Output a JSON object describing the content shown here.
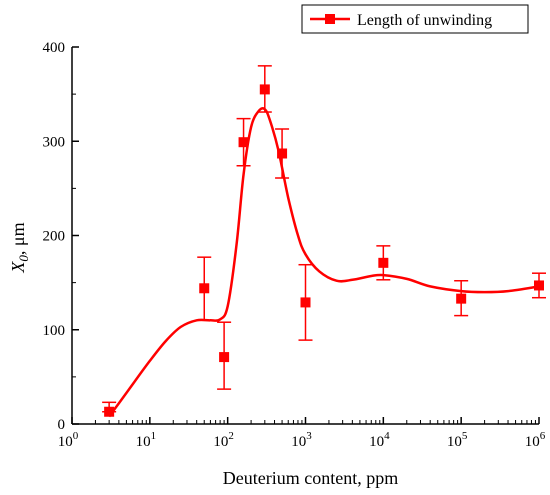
{
  "chart_data": {
    "type": "scatter",
    "x_scale": "log",
    "xlabel": "Deuterium content, ppm",
    "ylabel_main": "X",
    "ylabel_sub": "0",
    "ylabel_unit": ", μm",
    "xlim": [
      1,
      1000000
    ],
    "ylim": [
      0,
      400
    ],
    "x_ticks": [
      {
        "base": "10",
        "exp": "0",
        "value": 1
      },
      {
        "base": "10",
        "exp": "1",
        "value": 10
      },
      {
        "base": "10",
        "exp": "2",
        "value": 100
      },
      {
        "base": "10",
        "exp": "3",
        "value": 1000
      },
      {
        "base": "10",
        "exp": "4",
        "value": 10000
      },
      {
        "base": "10",
        "exp": "5",
        "value": 100000
      },
      {
        "base": "10",
        "exp": "6",
        "value": 1000000
      }
    ],
    "y_ticks": [
      {
        "label": "0",
        "value": 0
      },
      {
        "label": "100",
        "value": 100
      },
      {
        "label": "200",
        "value": 200
      },
      {
        "label": "300",
        "value": 300
      },
      {
        "label": "400",
        "value": 400
      }
    ],
    "grid": false,
    "legend_position": "top-right",
    "series": [
      {
        "name": "Length of unwinding",
        "color": "#ff0000",
        "marker": "square",
        "points": [
          {
            "x": 3,
            "y": 13,
            "err_low": 13,
            "err_high": 23
          },
          {
            "x": 50,
            "y": 144,
            "err_low": 110,
            "err_high": 177
          },
          {
            "x": 90,
            "y": 71,
            "err_low": 37,
            "err_high": 108
          },
          {
            "x": 160,
            "y": 299,
            "err_low": 274,
            "err_high": 324
          },
          {
            "x": 300,
            "y": 355,
            "err_low": 331,
            "err_high": 380
          },
          {
            "x": 500,
            "y": 287,
            "err_low": 261,
            "err_high": 313
          },
          {
            "x": 1000,
            "y": 129,
            "err_low": 89,
            "err_high": 169
          },
          {
            "x": 10000,
            "y": 171,
            "err_low": 153,
            "err_high": 189
          },
          {
            "x": 100000,
            "y": 133,
            "err_low": 115,
            "err_high": 152
          },
          {
            "x": 1000000,
            "y": 147,
            "err_low": 134,
            "err_high": 160
          }
        ],
        "fit_curve": [
          [
            3,
            8
          ],
          [
            4,
            22
          ],
          [
            6,
            42
          ],
          [
            10,
            67
          ],
          [
            16,
            88
          ],
          [
            25,
            103
          ],
          [
            40,
            110
          ],
          [
            60,
            110
          ],
          [
            80,
            111
          ],
          [
            100,
            125
          ],
          [
            130,
            190
          ],
          [
            160,
            265
          ],
          [
            200,
            315
          ],
          [
            250,
            332
          ],
          [
            300,
            334
          ],
          [
            350,
            322
          ],
          [
            450,
            290
          ],
          [
            600,
            240
          ],
          [
            800,
            200
          ],
          [
            1000,
            180
          ],
          [
            1500,
            162
          ],
          [
            2500,
            152
          ],
          [
            4000,
            153
          ],
          [
            7000,
            157
          ],
          [
            10000,
            158
          ],
          [
            20000,
            154
          ],
          [
            40000,
            146
          ],
          [
            100000,
            141
          ],
          [
            200000,
            140
          ],
          [
            400000,
            141
          ],
          [
            1000000,
            146
          ]
        ]
      }
    ]
  }
}
